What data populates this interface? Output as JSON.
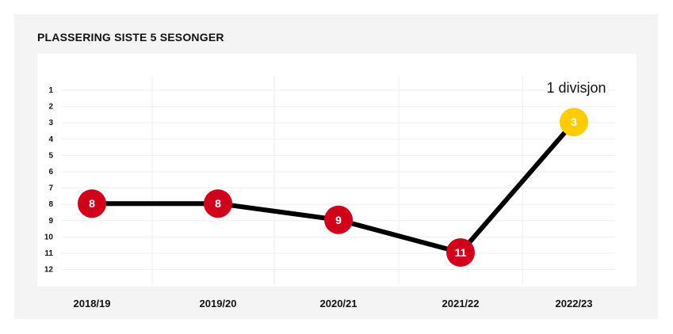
{
  "title": "PLASSERING SISTE 5 SESONGER",
  "annotation": "1 divisjon",
  "colors": {
    "default_marker": "#d0021b",
    "highlight_marker": "#ffcc00",
    "line": "#000000",
    "grid": "#eeeeee"
  },
  "chart_data": {
    "type": "line",
    "categories": [
      "2018/19",
      "2019/20",
      "2020/21",
      "2021/22",
      "2022/23"
    ],
    "values": [
      8,
      8,
      9,
      11,
      3
    ],
    "point_labels": [
      "8",
      "8",
      "9",
      "11",
      "3"
    ],
    "highlight_index": 4,
    "ylim": [
      1,
      12
    ],
    "y_inverted": true,
    "yticks": [
      "1",
      "2",
      "3",
      "4",
      "5",
      "6",
      "7",
      "8",
      "9",
      "10",
      "11",
      "12"
    ],
    "grid": true
  }
}
